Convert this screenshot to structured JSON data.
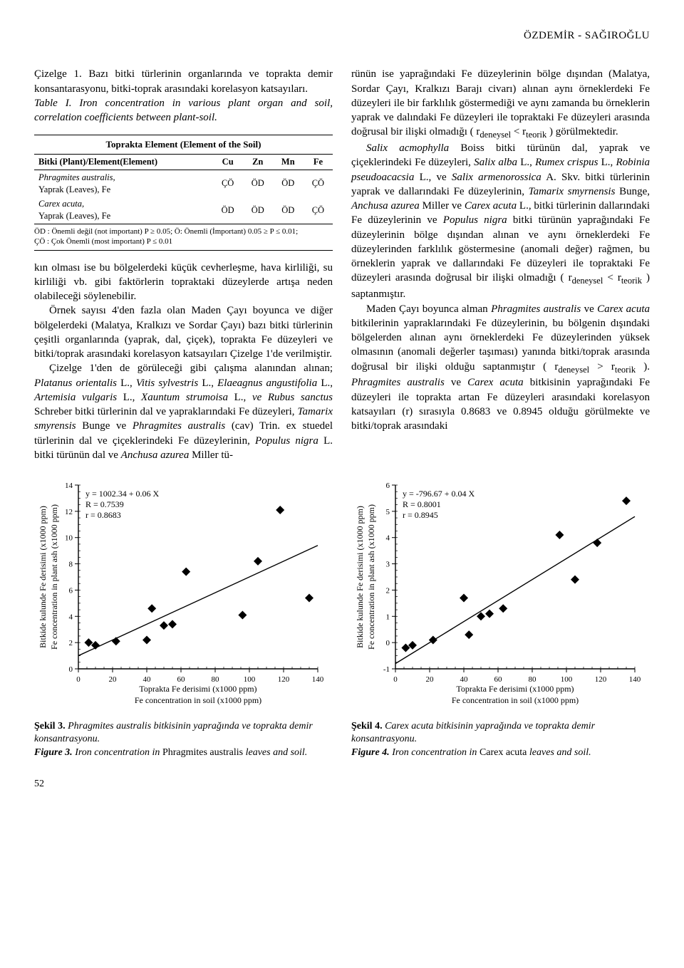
{
  "running_head": "ÖZDEMİR - SAĞIROĞLU",
  "left_caption": {
    "tr": "Çizelge 1. Bazı bitki türlerinin organlarında ve toprakta demir konsantarasyonu, bitki-toprak arasındaki korelasyon katsayıları.",
    "en_prefix": "Table I.",
    "en": " Iron concentration in various plant organ and soil, correlation coefficients between plant-soil."
  },
  "table": {
    "header_title": "Toprakta Element (Element of the Soil)",
    "row_header": "Bitki (Plant)/Element(Element)",
    "cols": [
      "Cu",
      "Zn",
      "Mn",
      "Fe"
    ],
    "rows": [
      {
        "label_html": "<em>Phragmites australis,</em><br>Yaprak (Leaves), Fe",
        "cells": [
          "ÇÖ",
          "ÖD",
          "ÖD",
          "ÇÖ"
        ]
      },
      {
        "label_html": "<em>Carex acuta,</em><br>Yaprak (Leaves), Fe",
        "cells": [
          "ÖD",
          "ÖD",
          "ÖD",
          "ÇÖ"
        ]
      }
    ],
    "note": "ÖD : Önemli değil (not important) P ≥ 0.05; Ö: Önemli (İmportant) 0.05 ≥ P ≤ 0.01;\nÇÖ : Çok Önemli (most important) P ≤ 0.01"
  },
  "left_body": [
    "kın olması ise bu bölgelerdeki küçük cevherleşme, hava kirliliği, su kirliliği vb. gibi faktörlerin topraktaki düzeylerde artışa neden olabileceği söylenebilir.",
    "Örnek sayısı 4'den fazla olan Maden Çayı boyunca ve diğer bölgelerdeki (Malatya, Kralkızı ve Sordar Çayı) bazı bitki türlerinin çeşitli organlarında (yaprak, dal, çiçek), toprakta Fe düzeyleri ve bitki/toprak arasındaki korelasyon katsayıları Çizelge 1'de verilmiştir.",
    "Çizelge 1'den de görüleceği gibi çalışma alanından alınan; <em>Platanus orientalis</em> L., <em>Vitis sylvestris</em> L., <em>Elaeagnus angustifolia</em> L., <em>Artemisia vulgaris</em> L., <em>Xauntum strumoisa</em> L., <em>ve Rubus sanctus</em> Schreber bitki türlerinin dal ve yapraklarındaki Fe düzeyleri, <em>Tamarix smyrensis</em> Bunge ve <em>Phragmites australis</em> (cav) Trin. ex stuedel türlerinin dal ve çiçeklerindeki Fe düzeylerinin, <em>Populus nigra</em> L. bitki türünün dal ve <em>Anchusa azurea</em> Miller tü-"
  ],
  "right_body": [
    "rünün ise yaprağındaki Fe düzeylerinin bölge dışından (Malatya, Sordar Çayı, Kralkızı Barajı civarı) alınan aynı örneklerdeki Fe düzeyleri ile bir farklılık göstermediği ve aynı zamanda bu örneklerin yaprak ve dalındaki Fe düzeyleri ile topraktaki Fe düzeyleri arasında doğrusal bir ilişki olmadığı ( r<sub>deneysel</sub> &lt; r<sub>teorik</sub> ) görülmektedir.",
    "<em>Salix acmophylla</em> Boiss bitki türünün dal, yaprak ve çiçeklerindeki Fe düzeyleri, <em>Salix alba</em> L., <em>Rumex crispus</em> L., <em>Robinia pseudoacacsia</em> L., ve <em>Salix armenorossica</em> A. Skv. bitki türlerinin yaprak ve dallarındaki Fe düzeylerinin, <em>Tamarix smyrnensis</em> Bunge, <em>Anchusa azurea</em> Miller ve <em>Carex acuta</em> L., bitki türlerinin dallarındaki Fe düzeylerinin ve <em>Populus nigra</em> bitki türünün yaprağındaki Fe düzeylerinin bölge dışından alınan ve aynı örneklerdeki Fe düzeylerinden farklılık göstermesine (anomali değer) rağmen, bu örneklerin yaprak ve dallarındaki Fe düzeyleri ile topraktaki Fe düzeyleri arasında doğrusal bir ilişki olmadığı ( r<sub>deneysel</sub> &lt; r<sub>teorik</sub> ) saptanmıştır.",
    "Maden Çayı boyunca alman <em>Phragmites australis</em> ve <em>Carex acuta</em> bitkilerinin yapraklarındaki Fe düzeylerinin, bu bölgenin dışındaki bölgelerden alınan aynı örneklerdeki Fe düzeylerinden yüksek olmasının (anomali değerler taşıması) yanında bitki/toprak arasında doğrusal bir ilişki olduğu saptanmıştır ( r<sub>deneysel</sub> &gt; r<sub>teorik</sub> ). <em>Phragmites australis</em> ve <em>Carex acuta</em> bitkisinin yaprağındaki Fe düzeyleri ile toprakta artan Fe düzeyleri arasındaki korelasyon katsayıları (r) sırasıyla 0.8683 ve 0.8945 olduğu görülmekte ve bitki/toprak arasındaki"
  ],
  "chart_common": {
    "x_label_tr": "Toprakta Fe derisimi (x1000 ppm)",
    "x_label_en": "Fe concentration in soil (x1000 ppm)",
    "y_label_tr": "Bitkide kulunde Fe derisimi (x1000 ppm)",
    "y_label_en": "Fe concentration in plant ash (x1000 ppm)",
    "axis_color": "#000000",
    "point_color": "#000000",
    "line_color": "#000000",
    "background_color": "#ffffff",
    "marker": "diamond",
    "marker_size": 6,
    "line_width": 1.4,
    "tick_len": 5
  },
  "chart_left": {
    "xlim": [
      0,
      140
    ],
    "xtick_step": 20,
    "ylim": [
      0,
      14
    ],
    "ytick_step": 2,
    "annot": [
      "y = 1002.34 + 0.06 X",
      "R = 0.7539",
      "r = 0.8683"
    ],
    "line": {
      "x0": 0,
      "y0": 1.0,
      "x1": 140,
      "y1": 9.4
    },
    "points": [
      {
        "x": 6,
        "y": 2.0
      },
      {
        "x": 10,
        "y": 1.8
      },
      {
        "x": 22,
        "y": 2.1
      },
      {
        "x": 40,
        "y": 2.2
      },
      {
        "x": 43,
        "y": 4.6
      },
      {
        "x": 50,
        "y": 3.3
      },
      {
        "x": 55,
        "y": 3.4
      },
      {
        "x": 63,
        "y": 7.4
      },
      {
        "x": 96,
        "y": 4.1
      },
      {
        "x": 105,
        "y": 8.2
      },
      {
        "x": 118,
        "y": 12.1
      },
      {
        "x": 135,
        "y": 5.4
      }
    ]
  },
  "chart_right": {
    "xlim": [
      0,
      140
    ],
    "xtick_step": 20,
    "ylim": [
      -1,
      6
    ],
    "ytick_step": 1,
    "annot": [
      "y = -796.67 + 0.04 X",
      "R = 0.8001",
      "r = 0.8945"
    ],
    "line": {
      "x0": 0,
      "y0": -0.8,
      "x1": 140,
      "y1": 4.8
    },
    "points": [
      {
        "x": 6,
        "y": -0.2
      },
      {
        "x": 10,
        "y": -0.1
      },
      {
        "x": 22,
        "y": 0.1
      },
      {
        "x": 40,
        "y": 1.7
      },
      {
        "x": 43,
        "y": 0.3
      },
      {
        "x": 50,
        "y": 1.0
      },
      {
        "x": 55,
        "y": 1.1
      },
      {
        "x": 63,
        "y": 1.3
      },
      {
        "x": 96,
        "y": 4.1
      },
      {
        "x": 105,
        "y": 2.4
      },
      {
        "x": 118,
        "y": 3.8
      },
      {
        "x": 135,
        "y": 5.4
      }
    ]
  },
  "fig3": {
    "tr_bold": "Şekil 3.",
    "tr": " Phragmites australis bitkisinin yaprağında ve toprakta demir konsantrasyonu.",
    "en_bold": "Figure 3.",
    "en_before": " Iron concentration in ",
    "en_species": "Phragmites australis",
    "en_after": " leaves and soil."
  },
  "fig4": {
    "tr_bold": "Şekil 4.",
    "tr": " Carex acuta bitkisinin yaprağında ve toprakta demir konsantrasyonu.",
    "en_bold": "Figure 4.",
    "en_before": " Iron concentration in ",
    "en_species": "Carex acuta",
    "en_after": " leaves and soil."
  },
  "page_number": "52"
}
